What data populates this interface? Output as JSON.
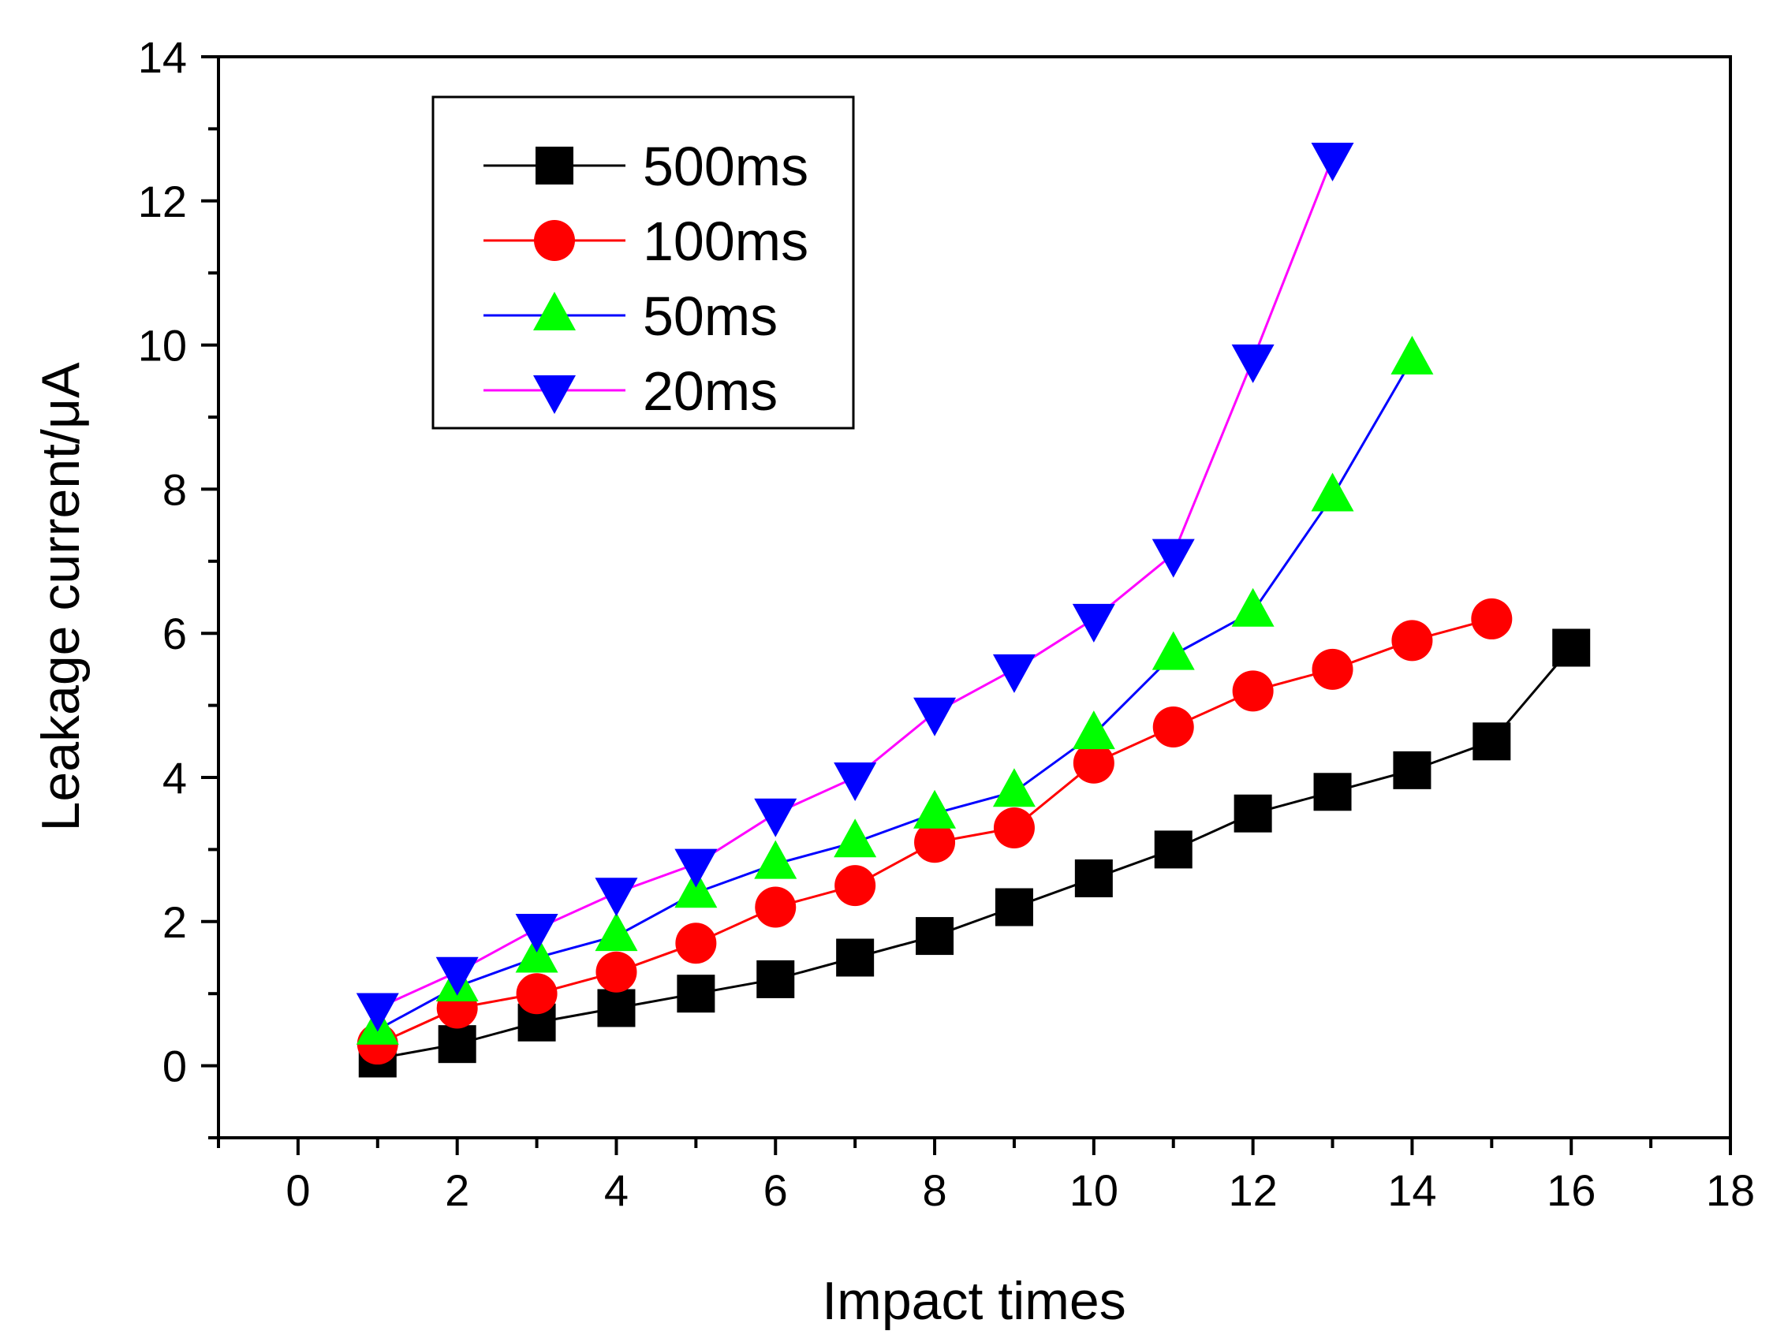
{
  "chart_data": {
    "type": "line",
    "title": "",
    "xlabel": "Impact times",
    "ylabel": "Leakage current/μA",
    "xlim": [
      -1,
      18
    ],
    "ylim": [
      -1,
      14
    ],
    "xticks": [
      0,
      2,
      4,
      6,
      8,
      10,
      12,
      14,
      16,
      18
    ],
    "yticks": [
      0,
      2,
      4,
      6,
      8,
      10,
      12,
      14
    ],
    "grid": false,
    "legend_position": "top-left",
    "series": [
      {
        "name": "500ms",
        "color": "#000000",
        "marker": "square",
        "x": [
          1,
          2,
          3,
          4,
          5,
          6,
          7,
          8,
          9,
          10,
          11,
          12,
          13,
          14,
          15,
          16
        ],
        "values": [
          0.1,
          0.3,
          0.6,
          0.8,
          1.0,
          1.2,
          1.5,
          1.8,
          2.2,
          2.6,
          3.0,
          3.5,
          3.8,
          4.1,
          4.5,
          5.8
        ]
      },
      {
        "name": "100ms",
        "color": "#ff0000",
        "marker": "circle",
        "x": [
          1,
          2,
          3,
          4,
          5,
          6,
          7,
          8,
          9,
          10,
          11,
          12,
          13,
          14,
          15
        ],
        "values": [
          0.3,
          0.8,
          1.0,
          1.3,
          1.7,
          2.2,
          2.5,
          3.1,
          3.3,
          4.2,
          4.7,
          5.2,
          5.5,
          5.9,
          6.2
        ]
      },
      {
        "name": "50ms",
        "color": "#0000ff",
        "marker_color": "#00ff00",
        "marker": "triangle-up",
        "x": [
          1,
          2,
          3,
          4,
          5,
          6,
          7,
          8,
          9,
          10,
          11,
          12,
          13,
          14
        ],
        "values": [
          0.5,
          1.1,
          1.5,
          1.8,
          2.4,
          2.8,
          3.1,
          3.5,
          3.8,
          4.6,
          5.7,
          6.3,
          7.9,
          9.8
        ]
      },
      {
        "name": "20ms",
        "color": "#ff00ff",
        "marker_color": "#0000ff",
        "marker": "triangle-down",
        "x": [
          1,
          2,
          3,
          4,
          5,
          6,
          7,
          8,
          9,
          10,
          11,
          12,
          13
        ],
        "values": [
          0.8,
          1.3,
          1.9,
          2.4,
          2.8,
          3.5,
          4.0,
          4.9,
          5.5,
          6.2,
          7.1,
          9.8,
          12.6
        ]
      }
    ]
  }
}
